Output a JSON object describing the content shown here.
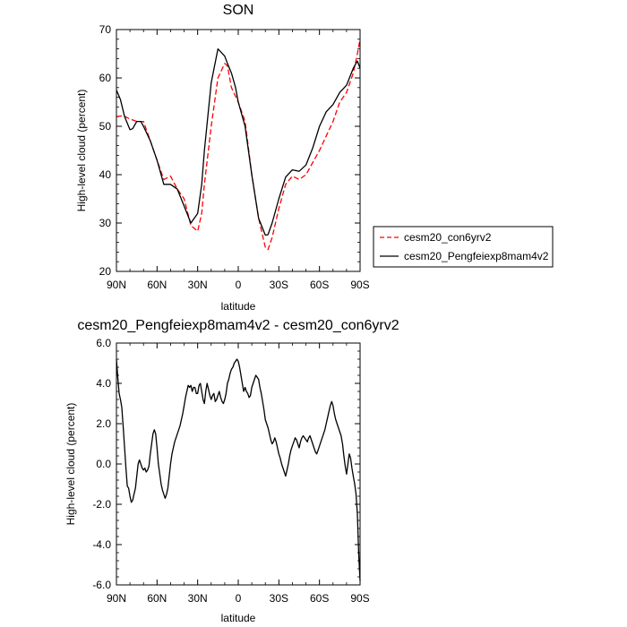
{
  "chart_data": [
    {
      "type": "line",
      "title": "SON",
      "xlabel": "latitude",
      "ylabel": "High-level cloud (percent)",
      "xlim": [
        90,
        -90
      ],
      "ylim": [
        20,
        70
      ],
      "x_ticks": [
        90,
        60,
        30,
        0,
        -30,
        -60,
        -90
      ],
      "x_tick_labels": [
        "90N",
        "60N",
        "30N",
        "0",
        "30S",
        "60S",
        "90S"
      ],
      "y_ticks": [
        20,
        30,
        40,
        50,
        60,
        70
      ],
      "y_tick_labels": [
        "20",
        "30",
        "40",
        "50",
        "60",
        "70"
      ],
      "legend_position": "right",
      "series": [
        {
          "name": "cesm20_con6yrv2",
          "color": "#ff0000",
          "dash": "dashed",
          "x": [
            90,
            85,
            80,
            75,
            70,
            65,
            60,
            55,
            50,
            45,
            40,
            35,
            30,
            27,
            25,
            20,
            15,
            10,
            8,
            5,
            0,
            -5,
            -10,
            -15,
            -20,
            -22,
            -25,
            -30,
            -35,
            -40,
            -45,
            -50,
            -55,
            -60,
            -65,
            -70,
            -75,
            -80,
            -85,
            -88,
            -90
          ],
          "y": [
            52,
            52.2,
            51.5,
            51,
            51,
            47,
            43,
            39,
            39.7,
            37,
            35,
            29.5,
            28.3,
            32,
            38,
            50,
            60,
            63,
            62.5,
            58,
            55,
            51,
            40,
            31,
            25,
            24.5,
            27,
            33,
            38,
            39.7,
            39,
            40,
            42.5,
            45,
            48,
            51,
            55,
            57,
            61,
            65,
            68
          ]
        },
        {
          "name": "cesm20_Pengfeiexp8mam4v2",
          "color": "#000000",
          "dash": "solid",
          "x": [
            90,
            87,
            84,
            80,
            78,
            75,
            72,
            70,
            65,
            60,
            55,
            50,
            45,
            40,
            35,
            30,
            27,
            25,
            20,
            15,
            10,
            8,
            5,
            2,
            0,
            -5,
            -10,
            -15,
            -20,
            -22,
            -25,
            -30,
            -35,
            -40,
            -45,
            -50,
            -55,
            -60,
            -65,
            -70,
            -75,
            -80,
            -85,
            -88,
            -90
          ],
          "y": [
            57.5,
            55.5,
            52,
            49.3,
            49.5,
            51,
            51,
            50,
            47,
            43,
            38,
            38,
            37,
            33.5,
            30,
            32,
            38,
            45,
            59,
            66,
            64.5,
            63,
            61,
            58,
            55,
            50,
            40,
            31,
            27.5,
            27.6,
            30,
            35,
            39.5,
            41,
            40.7,
            42,
            45.5,
            50,
            53,
            54.5,
            57,
            58.5,
            62,
            63.5,
            62
          ]
        }
      ]
    },
    {
      "type": "line",
      "title": "cesm20_Pengfeiexp8mam4v2 - cesm20_con6yrv2",
      "xlabel": "latitude",
      "ylabel": "High-level cloud (percent)",
      "xlim": [
        90,
        -90
      ],
      "ylim": [
        -6,
        6
      ],
      "x_ticks": [
        90,
        60,
        30,
        0,
        -30,
        -60,
        -90
      ],
      "x_tick_labels": [
        "90N",
        "60N",
        "30N",
        "0",
        "30S",
        "60S",
        "90S"
      ],
      "y_ticks": [
        -6,
        -4,
        -2,
        0,
        2,
        4,
        6
      ],
      "y_tick_labels": [
        "-6.0",
        "-4.0",
        "-2.0",
        "0.0",
        "2.0",
        "4.0",
        "6.0"
      ],
      "series": [
        {
          "color": "#000000",
          "dash": "solid",
          "x": [
            90,
            89,
            88,
            87,
            86,
            85,
            84,
            83,
            82,
            81,
            80,
            79,
            78,
            77,
            76,
            75,
            74,
            73,
            72,
            71,
            70,
            69,
            68,
            67,
            66,
            65,
            64,
            63,
            62,
            61,
            60,
            59,
            58,
            57,
            56,
            55,
            54,
            53,
            52,
            51,
            50,
            49,
            48,
            47,
            46,
            45,
            44,
            43,
            42,
            41,
            40,
            39,
            38,
            37,
            36,
            35,
            34,
            33,
            32,
            31,
            30,
            29,
            28,
            27,
            26,
            25,
            24,
            23,
            22,
            21,
            20,
            19,
            18,
            17,
            16,
            15,
            14,
            13,
            12,
            11,
            10,
            9,
            8,
            7,
            6,
            5,
            4,
            3,
            2,
            1,
            0,
            -1,
            -2,
            -3,
            -4,
            -5,
            -6,
            -7,
            -8,
            -9,
            -10,
            -11,
            -12,
            -13,
            -14,
            -15,
            -16,
            -17,
            -18,
            -19,
            -20,
            -21,
            -22,
            -23,
            -24,
            -25,
            -26,
            -27,
            -28,
            -29,
            -30,
            -31,
            -32,
            -33,
            -34,
            -35,
            -36,
            -37,
            -38,
            -39,
            -40,
            -41,
            -42,
            -43,
            -44,
            -45,
            -46,
            -47,
            -48,
            -49,
            -50,
            -51,
            -52,
            -53,
            -54,
            -55,
            -56,
            -57,
            -58,
            -59,
            -60,
            -61,
            -62,
            -63,
            -64,
            -65,
            -66,
            -67,
            -68,
            -69,
            -70,
            -71,
            -72,
            -73,
            -74,
            -75,
            -76,
            -77,
            -78,
            -79,
            -80,
            -81,
            -82,
            -83,
            -84,
            -85,
            -86,
            -87,
            -88,
            -89,
            -90
          ],
          "y": [
            5.2,
            4.3,
            3.5,
            3.2,
            2.8,
            1.8,
            0.8,
            -0.2,
            -1.1,
            -1.2,
            -1.6,
            -1.9,
            -1.8,
            -1.5,
            -1.2,
            -0.6,
            0.0,
            0.2,
            0.0,
            -0.2,
            -0.3,
            -0.2,
            -0.4,
            -0.3,
            -0.1,
            0.5,
            1.0,
            1.5,
            1.7,
            1.5,
            0.8,
            0.0,
            -0.5,
            -1.0,
            -1.3,
            -1.5,
            -1.7,
            -1.5,
            -1.2,
            -0.6,
            0.0,
            0.5,
            0.8,
            1.1,
            1.3,
            1.5,
            1.7,
            1.9,
            2.2,
            2.5,
            2.9,
            3.3,
            3.6,
            3.9,
            3.8,
            3.9,
            3.6,
            3.8,
            3.8,
            3.5,
            3.5,
            3.9,
            4.0,
            3.6,
            3.2,
            3.0,
            3.6,
            4.0,
            3.7,
            3.4,
            3.2,
            3.4,
            3.5,
            3.1,
            3.2,
            3.4,
            3.6,
            3.3,
            3.1,
            3.0,
            3.2,
            3.5,
            4.0,
            4.2,
            4.5,
            4.7,
            4.8,
            5.0,
            5.1,
            5.2,
            5.1,
            4.8,
            4.4,
            4.0,
            3.6,
            3.8,
            3.6,
            3.5,
            3.3,
            3.4,
            3.8,
            4.0,
            4.2,
            4.4,
            4.3,
            4.2,
            3.8,
            3.5,
            3.1,
            2.7,
            2.2,
            2.0,
            1.8,
            1.5,
            1.2,
            1.0,
            1.1,
            1.3,
            1.1,
            0.8,
            0.5,
            0.3,
            0.0,
            -0.2,
            -0.4,
            -0.6,
            -0.3,
            0.0,
            0.4,
            0.7,
            0.9,
            1.1,
            1.3,
            1.2,
            1.0,
            0.8,
            1.1,
            1.3,
            1.4,
            1.3,
            1.2,
            1.1,
            1.3,
            1.4,
            1.2,
            1.0,
            0.8,
            0.6,
            0.5,
            0.7,
            0.9,
            1.1,
            1.3,
            1.5,
            1.7,
            2.0,
            2.3,
            2.6,
            2.9,
            3.1,
            2.9,
            2.5,
            2.2,
            2.0,
            1.8,
            1.6,
            1.4,
            1.0,
            0.4,
            -0.1,
            -0.5,
            0.0,
            0.5,
            0.3,
            -0.2,
            -0.6,
            -1.0,
            -1.5,
            -2.5,
            -4.5,
            -5.8
          ]
        }
      ]
    }
  ]
}
